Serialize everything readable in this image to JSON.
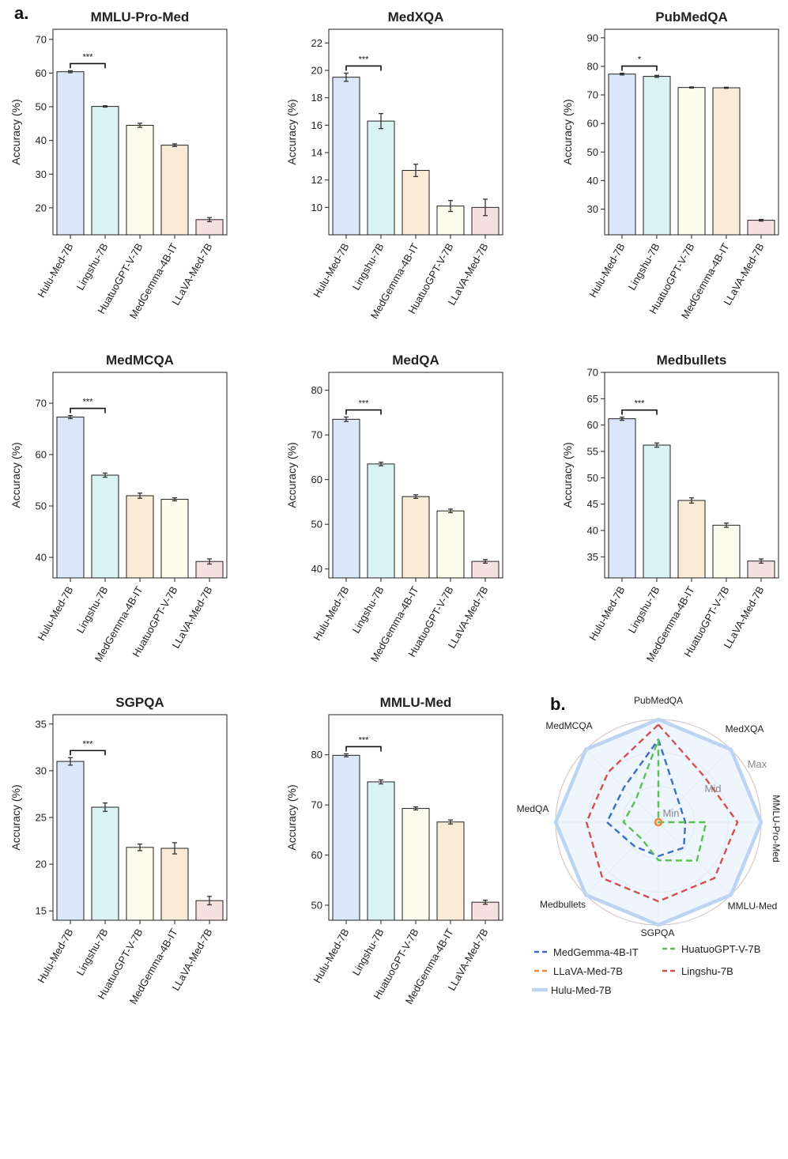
{
  "panel_labels": {
    "a": "a.",
    "b": "b."
  },
  "ylabel": "Accuracy (%)",
  "colors": {
    "Hulu-Med-7B": "#dbe6f8",
    "Lingshu-7B": "#d9f2f2",
    "HuatuoGPT-V-7B": "#fbfcec",
    "MedGemma-4B-IT": "#f9ebd6",
    "LLaVA-Med-7B": "#f5e1e0"
  },
  "chart_data": [
    {
      "type": "bar",
      "title": "MMLU-Pro-Med",
      "categories": [
        "Hulu-Med-7B",
        "Lingshu-7B",
        "HuatuoGPT-V-7B",
        "MedGemma-4B-IT",
        "LLaVA-Med-7B"
      ],
      "values": [
        60.4,
        50.1,
        44.5,
        38.6,
        16.5
      ],
      "errors": [
        0.3,
        0.2,
        0.6,
        0.4,
        0.6
      ],
      "ylim": [
        12,
        73
      ],
      "yticks": [
        20,
        30,
        40,
        50,
        60,
        70
      ],
      "significance": "***"
    },
    {
      "type": "bar",
      "title": "MedXQA",
      "categories": [
        "Hulu-Med-7B",
        "Lingshu-7B",
        "MedGemma-4B-IT",
        "HuatuoGPT-V-7B",
        "LLaVA-Med-7B"
      ],
      "values": [
        19.5,
        16.3,
        12.7,
        10.1,
        10.0
      ],
      "errors": [
        0.3,
        0.55,
        0.45,
        0.4,
        0.6
      ],
      "ylim": [
        8,
        23
      ],
      "yticks": [
        10,
        12,
        14,
        16,
        18,
        20,
        22
      ],
      "significance": "***"
    },
    {
      "type": "bar",
      "title": "PubMedQA",
      "categories": [
        "Hulu-Med-7B",
        "Lingshu-7B",
        "HuatuoGPT-V-7B",
        "MedGemma-4B-IT",
        "LLaVA-Med-7B"
      ],
      "values": [
        77.3,
        76.5,
        72.6,
        72.5,
        26.1
      ],
      "errors": [
        0.3,
        0.35,
        0.2,
        0.2,
        0.3
      ],
      "ylim": [
        21,
        93
      ],
      "yticks": [
        30,
        40,
        50,
        60,
        70,
        80,
        90
      ],
      "significance": "*"
    },
    {
      "type": "bar",
      "title": "MedMCQA",
      "categories": [
        "Hulu-Med-7B",
        "Lingshu-7B",
        "MedGemma-4B-IT",
        "HuatuoGPT-V-7B",
        "LLaVA-Med-7B"
      ],
      "values": [
        67.3,
        56.0,
        52.0,
        51.3,
        39.2
      ],
      "errors": [
        0.3,
        0.4,
        0.5,
        0.3,
        0.5
      ],
      "ylim": [
        36,
        76
      ],
      "yticks": [
        40,
        50,
        60,
        70
      ],
      "significance": "***"
    },
    {
      "type": "bar",
      "title": "MedQA",
      "categories": [
        "Hulu-Med-7B",
        "Lingshu-7B",
        "MedGemma-4B-IT",
        "HuatuoGPT-V-7B",
        "LLaVA-Med-7B"
      ],
      "values": [
        73.5,
        63.5,
        56.2,
        53.0,
        41.7
      ],
      "errors": [
        0.5,
        0.4,
        0.4,
        0.4,
        0.4
      ],
      "ylim": [
        38,
        84
      ],
      "yticks": [
        40,
        50,
        60,
        70,
        80
      ],
      "significance": "***"
    },
    {
      "type": "bar",
      "title": "Medbullets",
      "categories": [
        "Hulu-Med-7B",
        "Lingshu-7B",
        "MedGemma-4B-IT",
        "HuatuoGPT-V-7B",
        "LLaVA-Med-7B"
      ],
      "values": [
        61.2,
        56.2,
        45.7,
        41.0,
        34.2
      ],
      "errors": [
        0.3,
        0.4,
        0.5,
        0.4,
        0.4
      ],
      "ylim": [
        31,
        70
      ],
      "yticks": [
        35,
        40,
        45,
        50,
        55,
        60,
        65,
        70
      ],
      "significance": "***"
    },
    {
      "type": "bar",
      "title": "SGPQA",
      "categories": [
        "Hulu-Med-7B",
        "Lingshu-7B",
        "HuatuoGPT-V-7B",
        "MedGemma-4B-IT",
        "LLaVA-Med-7B"
      ],
      "values": [
        31.0,
        26.1,
        21.8,
        21.7,
        16.1
      ],
      "errors": [
        0.4,
        0.45,
        0.35,
        0.6,
        0.45
      ],
      "ylim": [
        14,
        36
      ],
      "yticks": [
        15,
        20,
        25,
        30,
        35
      ],
      "significance": "***"
    },
    {
      "type": "bar",
      "title": "MMLU-Med",
      "categories": [
        "Hulu-Med-7B",
        "Lingshu-7B",
        "HuatuoGPT-V-7B",
        "MedGemma-4B-IT",
        "LLaVA-Med-7B"
      ],
      "values": [
        79.9,
        74.6,
        69.3,
        66.6,
        50.6
      ],
      "errors": [
        0.3,
        0.4,
        0.3,
        0.4,
        0.4
      ],
      "ylim": [
        47,
        88
      ],
      "yticks": [
        50,
        60,
        70,
        80
      ],
      "significance": "***"
    },
    {
      "type": "radar",
      "axes": [
        "PubMedQA",
        "MedXQA",
        "MMLU-Pro-Med",
        "MMLU-Med",
        "SGPQA",
        "Medbullets",
        "MedQA",
        "MedMCQA"
      ],
      "ring_labels": [
        "Max",
        "Mid",
        "Min"
      ],
      "series": [
        {
          "name": "MedGemma-4B-IT",
          "color": "#3a6fc4",
          "values": [
            0.805,
            0.28,
            0.262,
            0.35,
            0.33,
            0.33,
            0.5,
            0.475
          ],
          "width": 2.4,
          "dash": "8 5"
        },
        {
          "name": "HuatuoGPT-V-7B",
          "color": "#5bbf52",
          "values": [
            0.805,
            0.0,
            0.465,
            0.53,
            0.37,
            0.23,
            0.34,
            0.31
          ],
          "width": 2.4,
          "dash": "8 5"
        },
        {
          "name": "LLaVA-Med-7B",
          "color": "#ef8a3c",
          "values": [
            0.0,
            0.0,
            0.0,
            0.0,
            0.0,
            0.0,
            0.0,
            0.0
          ],
          "width": 2.4,
          "dash": "8 5"
        },
        {
          "name": "Lingshu-7B",
          "color": "#d2504f",
          "values": [
            0.95,
            0.63,
            0.77,
            0.77,
            0.77,
            0.77,
            0.7,
            0.69
          ],
          "width": 2.4,
          "dash": "8 5"
        },
        {
          "name": "Hulu-Med-7B",
          "color": "#bcd4f2",
          "values": [
            1,
            1,
            1,
            1,
            1,
            1,
            1,
            1
          ],
          "width": 4.5,
          "dash": "",
          "fill": "#e8f1fb"
        }
      ]
    }
  ]
}
